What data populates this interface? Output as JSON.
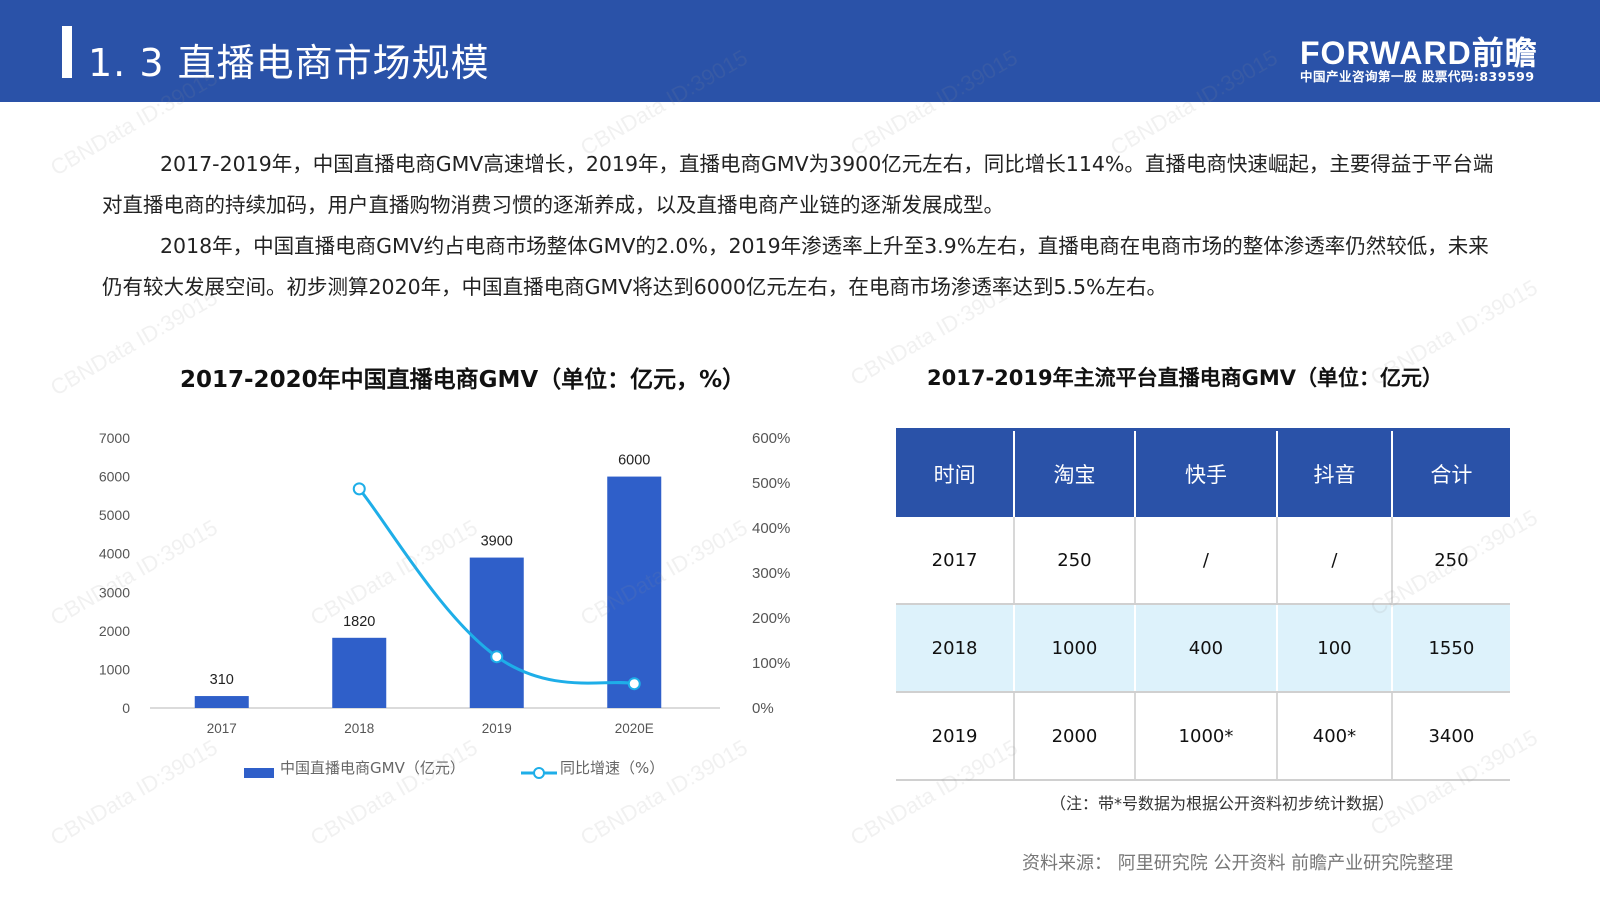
{
  "header": {
    "title": "1. 3  直播电商市场规模",
    "logo": "FORWARD前瞻",
    "logo_sub": "中国产业咨询第一股  股票代码:839599"
  },
  "paragraphs": [
    "2017-2019年，中国直播电商GMV高速增长，2019年，直播电商GMV为3900亿元左右，同比增长114%。直播电商快速崛起，主要得益于平台端对直播电商的持续加码，用户直播购物消费习惯的逐渐养成，以及直播电商产业链的逐渐发展成型。",
    "2018年，中国直播电商GMV约占电商市场整体GMV的2.0%，2019年渗透率上升至3.9%左右，直播电商在电商市场的整体渗透率仍然较低，未来仍有较大发展空间。初步测算2020年，中国直播电商GMV将达到6000亿元左右，在电商市场渗透率达到5.5%左右。"
  ],
  "chart_data": {
    "type": "bar",
    "title": "2017-2020年中国直播电商GMV（单位：亿元，%）",
    "categories": [
      "2017",
      "2018",
      "2019",
      "2020E"
    ],
    "series": [
      {
        "name": "中国直播电商GMV（亿元）",
        "type": "bar",
        "axis": "left",
        "values": [
          310,
          1820,
          3900,
          6000
        ],
        "color": "#2f5fc9"
      },
      {
        "name": "同比增速（%）",
        "type": "line",
        "axis": "right",
        "values": [
          null,
          487,
          114,
          54
        ],
        "color": "#1eaee8"
      }
    ],
    "y_left": {
      "min": 0,
      "max": 7000,
      "ticks": [
        0,
        1000,
        2000,
        3000,
        4000,
        5000,
        6000,
        7000
      ]
    },
    "y_right": {
      "min": 0,
      "max": 600,
      "ticks": [
        "0%",
        "100%",
        "200%",
        "300%",
        "400%",
        "500%",
        "600%"
      ]
    },
    "data_labels": [
      "310",
      "1820",
      "3900",
      "6000"
    ],
    "grid": false,
    "legend": "bottom"
  },
  "table": {
    "title": "2017-2019年主流平台直播电商GMV（单位：亿元）",
    "headers": [
      "时间",
      "淘宝",
      "快手",
      "抖音",
      "合计"
    ],
    "rows": [
      [
        "2017",
        "250",
        "/",
        "/",
        "250"
      ],
      [
        "2018",
        "1000",
        "400",
        "100",
        "1550"
      ],
      [
        "2019",
        "2000",
        "1000*",
        "400*",
        "3400"
      ]
    ]
  },
  "note": "（注：带*号数据为根据公开资料初步统计数据）",
  "source": "资料来源：  阿里研究院 公开资料 前瞻产业研究院整理",
  "watermark": "CBNData ID:39015"
}
